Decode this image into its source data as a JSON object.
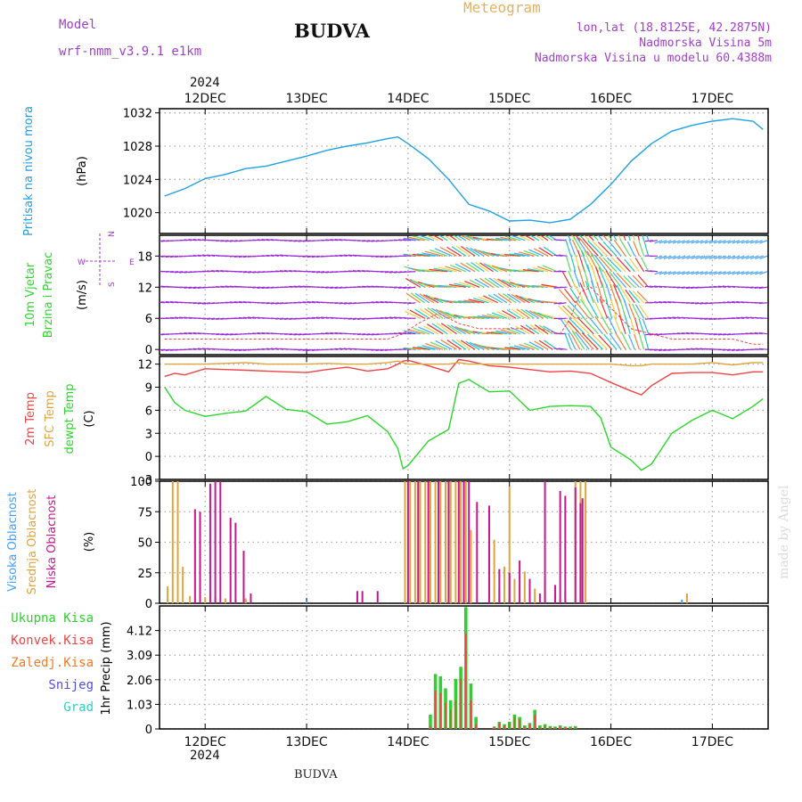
{
  "header": {
    "model_label": "Model",
    "model_name": "wrf-nmm_v3.9.1  e1km",
    "station": "BUDVA",
    "chart_type": "Meteogram",
    "coords": "lon,lat (18.8125E, 42.2875N)",
    "elevation": "Nadmorska Visina 5m",
    "elevation_model": "Nadmorska Visina u modelu 60.4388m",
    "year": "2024",
    "footer_station": "BUDVA",
    "credit": "made by Angel"
  },
  "colors": {
    "pressure": "#1fa0e8",
    "temp2m": "#ee4444",
    "sfc_temp": "#e0a43c",
    "dewpoint": "#2ad82a",
    "high_cloud": "#3fa0ff",
    "mid_cloud": "#e0a43c",
    "low_cloud": "#c41890",
    "precip_total": "#30d030",
    "precip_conv": "#ee4444",
    "precip_frz": "#ee7a2a",
    "snow": "#5050e0",
    "graupel": "#30d0c0",
    "wind_calm": "#9a2cd8"
  },
  "chart_data": [
    {
      "type": "line",
      "panel": "pressure",
      "ylabel_lines": [
        "Pritisak na nivou mora",
        "(hPa)"
      ],
      "ylim": [
        1017.5,
        1032.5
      ],
      "yticks": [
        1020,
        1024,
        1028,
        1032
      ],
      "x_days": [
        11.6,
        11.8,
        12.0,
        12.2,
        12.4,
        12.6,
        12.8,
        13.0,
        13.2,
        13.4,
        13.6,
        13.8,
        13.9,
        14.0,
        14.2,
        14.4,
        14.6,
        14.8,
        15.0,
        15.2,
        15.4,
        15.6,
        15.8,
        16.0,
        16.2,
        16.4,
        16.6,
        16.8,
        17.0,
        17.2,
        17.4,
        17.5
      ],
      "series": [
        {
          "values": [
            1022.0,
            1022.9,
            1024.1,
            1024.6,
            1025.3,
            1025.6,
            1026.2,
            1026.8,
            1027.5,
            1028.0,
            1028.4,
            1028.9,
            1029.1,
            1028.3,
            1026.5,
            1024.0,
            1021.0,
            1020.2,
            1019.0,
            1019.1,
            1018.8,
            1019.2,
            1021.0,
            1023.4,
            1026.2,
            1028.3,
            1029.8,
            1030.5,
            1031.0,
            1031.3,
            1031.0,
            1030.0
          ]
        }
      ]
    },
    {
      "type": "barbs",
      "panel": "wind",
      "ylabel_lines": [
        "10m Vjetar",
        "Brzina i Pravac",
        "(m/s)"
      ],
      "compass": [
        "N",
        "W",
        "E",
        "S"
      ],
      "ylim": [
        -1,
        22
      ],
      "yticks": [
        0,
        6,
        12,
        18
      ],
      "x_days": [
        11.6,
        11.8,
        12.0,
        12.2,
        12.4,
        12.6,
        12.8,
        13.0,
        13.2,
        13.4,
        13.6,
        13.8,
        13.95,
        14.1,
        14.3,
        14.5,
        14.7,
        14.9,
        15.1,
        15.3,
        15.5,
        15.6,
        15.7,
        15.8,
        15.9,
        16.0,
        16.2,
        16.4,
        16.6,
        16.8,
        17.0,
        17.2,
        17.4,
        17.5
      ],
      "speed": [
        2,
        2,
        2,
        2,
        2,
        2,
        2,
        2,
        2,
        2,
        2,
        2,
        3,
        5,
        7,
        5,
        4,
        4,
        4,
        4,
        3,
        6,
        11,
        12,
        10,
        8,
        4,
        3,
        2,
        2,
        2,
        2,
        1,
        1
      ]
    },
    {
      "type": "line",
      "panel": "temperature",
      "ylabel_lines": [
        "2m Temp",
        "SFC Temp",
        "dewpt Temp",
        "(C)"
      ],
      "ylim": [
        -3,
        13
      ],
      "yticks": [
        -3,
        0,
        3,
        6,
        9,
        12
      ],
      "x_days": [
        11.6,
        11.7,
        11.8,
        12.0,
        12.2,
        12.4,
        12.6,
        12.8,
        13.0,
        13.2,
        13.4,
        13.6,
        13.8,
        13.9,
        13.95,
        14.0,
        14.2,
        14.4,
        14.5,
        14.6,
        14.8,
        15.0,
        15.2,
        15.4,
        15.6,
        15.8,
        15.9,
        16.0,
        16.2,
        16.3,
        16.4,
        16.6,
        16.8,
        17.0,
        17.2,
        17.4,
        17.5
      ],
      "series": [
        {
          "name": "2m Temp",
          "values": [
            10.4,
            10.8,
            10.6,
            11.4,
            11.3,
            11.2,
            11.1,
            11.0,
            10.9,
            11.3,
            11.6,
            11.1,
            11.4,
            12.0,
            12.4,
            12.5,
            11.8,
            11.0,
            12.6,
            12.4,
            11.8,
            11.6,
            11.3,
            11.0,
            11.1,
            10.8,
            10.2,
            9.6,
            8.5,
            8.0,
            9.2,
            10.8,
            10.9,
            10.9,
            10.6,
            11.0,
            11.0
          ]
        },
        {
          "name": "SFC Temp",
          "values": [
            12.0,
            12.0,
            12.0,
            12.0,
            12.1,
            12.2,
            12.0,
            12.0,
            12.0,
            12.1,
            12.0,
            12.0,
            12.2,
            12.4,
            12.2,
            12.0,
            12.0,
            12.0,
            12.2,
            12.0,
            12.0,
            12.0,
            12.0,
            12.0,
            12.0,
            12.0,
            12.0,
            12.0,
            11.8,
            11.8,
            12.0,
            12.0,
            12.0,
            12.2,
            11.9,
            12.2,
            12.2
          ]
        },
        {
          "name": "dewpt Temp",
          "values": [
            9.0,
            7.0,
            6.0,
            5.2,
            5.6,
            5.9,
            7.8,
            6.1,
            5.8,
            4.2,
            4.5,
            5.3,
            3.2,
            1.0,
            -1.6,
            -1.2,
            2.0,
            3.5,
            9.5,
            10.0,
            8.4,
            8.5,
            6.0,
            6.5,
            6.6,
            6.5,
            5.0,
            1.2,
            -0.5,
            -1.8,
            -1.0,
            3.0,
            4.7,
            6.0,
            4.9,
            6.5,
            7.5
          ]
        }
      ]
    },
    {
      "type": "bar",
      "panel": "clouds",
      "ylabel_lines": [
        "Visoka Oblacnost",
        "Srednja Oblacnost",
        "Niska Oblacnost",
        "(%)"
      ],
      "ylim": [
        0,
        100
      ],
      "yticks": [
        0,
        25,
        50,
        75,
        100
      ],
      "series": [
        {
          "name": "Visoka Oblacnost",
          "x": [
            12.4,
            13.0,
            14.2,
            15.0,
            15.7,
            16.7
          ],
          "values": [
            2,
            2,
            3,
            3,
            2,
            3
          ]
        },
        {
          "name": "Srednja Oblacnost",
          "x": [
            11.63,
            11.68,
            11.73,
            11.78,
            11.85,
            12.0,
            12.1,
            12.2,
            12.3,
            12.4,
            13.5,
            13.97,
            14.02,
            14.07,
            14.12,
            14.17,
            14.22,
            14.27,
            14.32,
            14.37,
            14.42,
            14.47,
            14.52,
            14.57,
            14.62,
            14.85,
            14.9,
            14.95,
            15.0,
            15.05,
            15.15,
            15.25,
            15.35,
            15.45,
            15.55,
            15.65,
            15.7,
            15.75,
            16.75
          ],
          "values": [
            14,
            100,
            100,
            30,
            6,
            5,
            5,
            4,
            3,
            4,
            4,
            100,
            100,
            100,
            100,
            100,
            100,
            100,
            100,
            100,
            100,
            100,
            100,
            100,
            60,
            52,
            12,
            30,
            95,
            20,
            26,
            12,
            18,
            8,
            10,
            100,
            100,
            100,
            8
          ]
        },
        {
          "name": "Niska Oblacnost",
          "x": [
            11.9,
            11.95,
            12.05,
            12.1,
            12.15,
            12.25,
            12.3,
            12.38,
            12.45,
            13.5,
            13.55,
            13.7,
            14.0,
            14.1,
            14.2,
            14.3,
            14.4,
            14.5,
            14.55,
            14.6,
            14.68,
            14.8,
            14.9,
            15.0,
            15.1,
            15.2,
            15.3,
            15.35,
            15.45,
            15.5,
            15.55,
            15.65,
            15.7,
            15.72
          ],
          "values": [
            77,
            75,
            98,
            100,
            100,
            70,
            66,
            43,
            8,
            10,
            10,
            10,
            100,
            100,
            100,
            100,
            100,
            100,
            100,
            100,
            83,
            80,
            28,
            25,
            35,
            20,
            8,
            100,
            15,
            92,
            88,
            95,
            82,
            86
          ]
        }
      ]
    },
    {
      "type": "bar",
      "panel": "precip",
      "ylabel_lines": [
        "1hr Precip (mm)"
      ],
      "legend": [
        "Ukupna Kisa",
        "Konvek.Kisa",
        "Zaledj.Kisa",
        "Snijeg",
        "Grad"
      ],
      "ylim": [
        0,
        5.15
      ],
      "yticks": [
        0,
        1.03,
        2.06,
        3.09,
        4.12
      ],
      "xticks": [
        "12DEC",
        "13DEC",
        "14DEC",
        "15DEC",
        "16DEC",
        "17DEC"
      ],
      "x": [
        14.22,
        14.27,
        14.32,
        14.37,
        14.42,
        14.47,
        14.52,
        14.57,
        14.62,
        14.67,
        14.72,
        14.77,
        14.85,
        14.9,
        14.95,
        15.0,
        15.05,
        15.1,
        15.15,
        15.2,
        15.25,
        15.3,
        15.35,
        15.4,
        15.45,
        15.5,
        15.55,
        15.6,
        15.65
      ],
      "total": [
        0.6,
        2.3,
        2.2,
        1.7,
        1.2,
        2.1,
        2.6,
        5.1,
        1.9,
        0.5,
        0,
        0,
        0.1,
        0.3,
        0.2,
        0.3,
        0.6,
        0.5,
        0.15,
        0.25,
        0.8,
        0.15,
        0.2,
        0.12,
        0.1,
        0.15,
        0.1,
        0.1,
        0.12
      ],
      "convective": [
        0.1,
        1.6,
        1.5,
        1.1,
        0.8,
        1.2,
        2.1,
        4.0,
        1.2,
        0.2,
        0,
        0,
        0.1,
        0.25,
        0.15,
        0.25,
        0.5,
        0.4,
        0.1,
        0.2,
        0.6,
        0.1,
        0.15,
        0.08,
        0.07,
        0.1,
        0.07,
        0.06,
        0.08
      ]
    }
  ]
}
